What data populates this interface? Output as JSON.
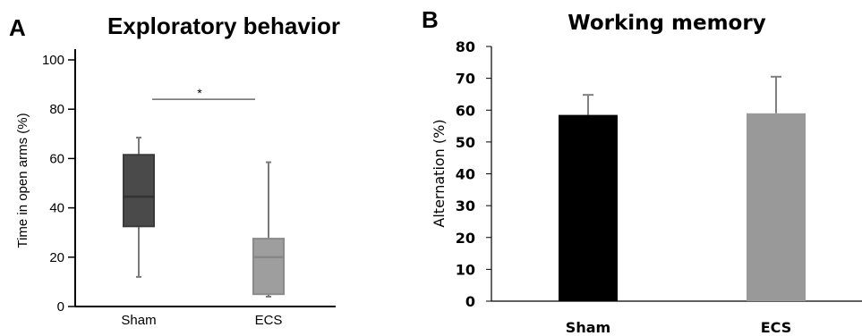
{
  "chart_data": [
    {
      "panel": "A",
      "type": "box",
      "title": "Exploratory behavior",
      "ylabel": "Time in open arms (%)",
      "xlabel": "",
      "ylim": [
        0,
        100
      ],
      "yticks": [
        0,
        20,
        40,
        60,
        80,
        100
      ],
      "categories": [
        "Sham",
        "ECS"
      ],
      "boxes": [
        {
          "category": "Sham",
          "min": 12,
          "q1": 32.5,
          "median": 44.5,
          "q3": 61.5,
          "max": 68.5,
          "color": "#4a4a4a",
          "border": "#3a3a3a",
          "median_color": "#333333"
        },
        {
          "category": "ECS",
          "min": 4,
          "q1": 5,
          "median": 20,
          "q3": 27.5,
          "max": 58.5,
          "color": "#9e9e9e",
          "border": "#8a8a8a",
          "median_color": "#888888"
        }
      ],
      "annotation": {
        "text": "*",
        "y": 84
      },
      "grid": false
    },
    {
      "panel": "B",
      "type": "bar",
      "title": "Working memory",
      "ylabel": "Alternation (%)",
      "xlabel": "",
      "ylim": [
        0,
        80
      ],
      "yticks": [
        0,
        10,
        20,
        30,
        40,
        50,
        60,
        70,
        80
      ],
      "categories": [
        "Sham",
        "ECS"
      ],
      "values": [
        58.5,
        59
      ],
      "errors": [
        6.3,
        11.5
      ],
      "colors": [
        "#000000",
        "#999999"
      ],
      "error_color": "#808080",
      "grid": false
    }
  ]
}
